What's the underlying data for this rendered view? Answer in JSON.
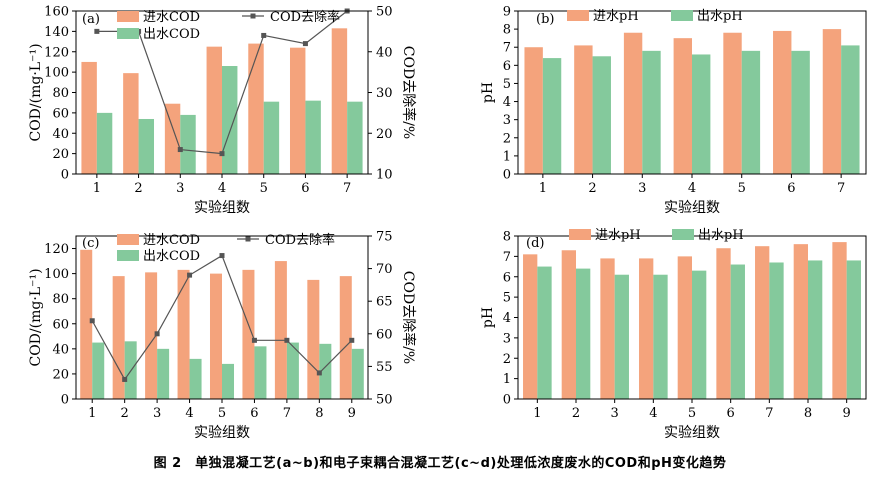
{
  "caption": "图 2　单独混凝工艺(a~b)和电子束耦合混凝工艺(c~d)处理低浓度废水的COD和pH变化趋势",
  "colors": {
    "inflow": "#f4a37c",
    "outflow": "#84c99c",
    "removal": "#555555",
    "axis": "#000000"
  },
  "chart_data": [
    {
      "id": "a",
      "type": "bar",
      "panel_label": "(a)",
      "title": "",
      "xlabel": "实验组数",
      "ylabel": "COD/(mg·L⁻¹)",
      "y2label": "COD去除率/%",
      "categories": [
        "1",
        "2",
        "3",
        "4",
        "5",
        "6",
        "7"
      ],
      "ylim": [
        0,
        160
      ],
      "yticks": [
        0,
        20,
        40,
        60,
        80,
        100,
        120,
        140,
        160
      ],
      "y2lim": [
        10,
        50
      ],
      "y2ticks": [
        10,
        20,
        30,
        40,
        50
      ],
      "series": [
        {
          "name": "进水COD",
          "kind": "bar",
          "values": [
            110,
            99,
            69,
            125,
            128,
            124,
            143
          ]
        },
        {
          "name": "出水COD",
          "kind": "bar",
          "values": [
            60,
            54,
            58,
            106,
            71,
            72,
            71
          ]
        },
        {
          "name": "COD去除率",
          "kind": "line",
          "axis": "right",
          "values": [
            45,
            45,
            16,
            15,
            44,
            42,
            50
          ]
        }
      ]
    },
    {
      "id": "b",
      "type": "bar",
      "panel_label": "(b)",
      "title": "",
      "xlabel": "实验组数",
      "ylabel": "pH",
      "categories": [
        "1",
        "2",
        "3",
        "4",
        "5",
        "6",
        "7"
      ],
      "ylim": [
        0,
        9
      ],
      "yticks": [
        0,
        1,
        2,
        3,
        4,
        5,
        6,
        7,
        8,
        9
      ],
      "series": [
        {
          "name": "进水pH",
          "kind": "bar",
          "values": [
            7.0,
            7.1,
            7.8,
            7.5,
            7.8,
            7.9,
            8.0
          ]
        },
        {
          "name": "出水pH",
          "kind": "bar",
          "values": [
            6.4,
            6.5,
            6.8,
            6.6,
            6.8,
            6.8,
            7.1
          ]
        }
      ]
    },
    {
      "id": "c",
      "type": "bar",
      "panel_label": "(c)",
      "title": "",
      "xlabel": "实验组数",
      "ylabel": "COD/(mg·L⁻¹)",
      "y2label": "COD去除率/%",
      "categories": [
        "1",
        "2",
        "3",
        "4",
        "5",
        "6",
        "7",
        "8",
        "9"
      ],
      "ylim": [
        0,
        130
      ],
      "yticks": [
        0,
        20,
        40,
        60,
        80,
        100,
        120
      ],
      "y2lim": [
        50,
        75
      ],
      "y2ticks": [
        50,
        55,
        60,
        65,
        70,
        75
      ],
      "series": [
        {
          "name": "进水COD",
          "kind": "bar",
          "values": [
            119,
            98,
            101,
            103,
            100,
            103,
            110,
            95,
            98
          ]
        },
        {
          "name": "出水COD",
          "kind": "bar",
          "values": [
            45,
            46,
            40,
            32,
            28,
            42,
            45,
            44,
            40
          ]
        },
        {
          "name": "COD去除率",
          "kind": "line",
          "axis": "right",
          "values": [
            62,
            53,
            60,
            69,
            72,
            59,
            59,
            54,
            59
          ]
        }
      ]
    },
    {
      "id": "d",
      "type": "bar",
      "panel_label": "(d)",
      "title": "",
      "xlabel": "实验组数",
      "ylabel": "pH",
      "categories": [
        "1",
        "2",
        "3",
        "4",
        "5",
        "6",
        "7",
        "8",
        "9"
      ],
      "ylim": [
        0,
        8
      ],
      "yticks": [
        0,
        1,
        2,
        3,
        4,
        5,
        6,
        7,
        8
      ],
      "series": [
        {
          "name": "进水pH",
          "kind": "bar",
          "values": [
            7.1,
            7.3,
            6.9,
            6.9,
            7.0,
            7.4,
            7.5,
            7.6,
            7.7
          ]
        },
        {
          "name": "出水pH",
          "kind": "bar",
          "values": [
            6.5,
            6.4,
            6.1,
            6.1,
            6.3,
            6.6,
            6.7,
            6.8,
            6.8
          ]
        }
      ]
    }
  ]
}
